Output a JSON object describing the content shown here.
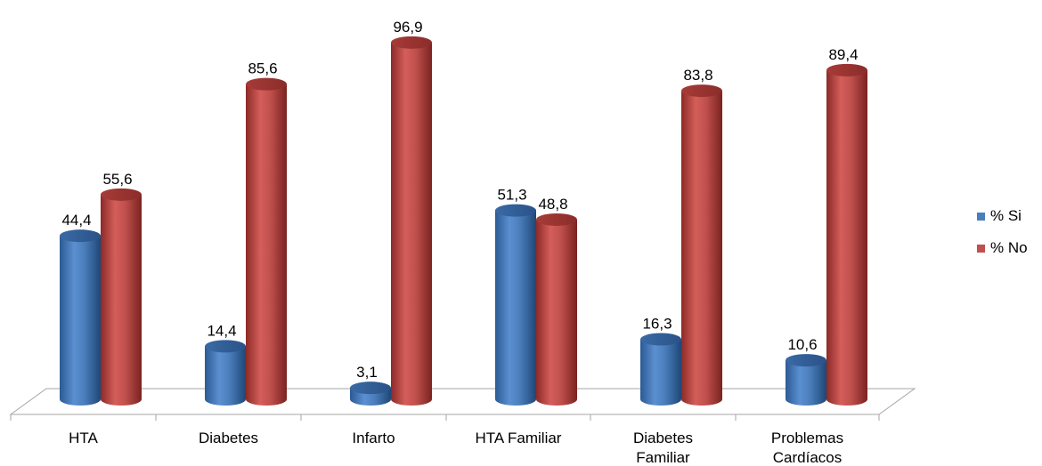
{
  "chart_data": {
    "type": "bar",
    "categories": [
      [
        "HTA"
      ],
      [
        "Diabetes"
      ],
      [
        "Infarto"
      ],
      [
        "HTA Familiar"
      ],
      [
        "Diabetes",
        "Familiar"
      ],
      [
        "Problemas",
        "Cardíacos"
      ]
    ],
    "series": [
      {
        "name": "% Si",
        "color": "#4a7ebb",
        "values": [
          44.4,
          14.4,
          3.1,
          51.3,
          16.3,
          10.6
        ],
        "labels": [
          "44,4",
          "14,4",
          "3,1",
          "51,3",
          "16,3",
          "10,6"
        ]
      },
      {
        "name": "% No",
        "color": "#c0504d",
        "values": [
          55.6,
          85.6,
          96.9,
          48.8,
          83.8,
          89.4
        ],
        "labels": [
          "55,6",
          "85,6",
          "96,9",
          "48,8",
          "83,8",
          "89,4"
        ]
      }
    ],
    "ylim": [
      0,
      100
    ],
    "grid": false,
    "legend_position": "right"
  }
}
